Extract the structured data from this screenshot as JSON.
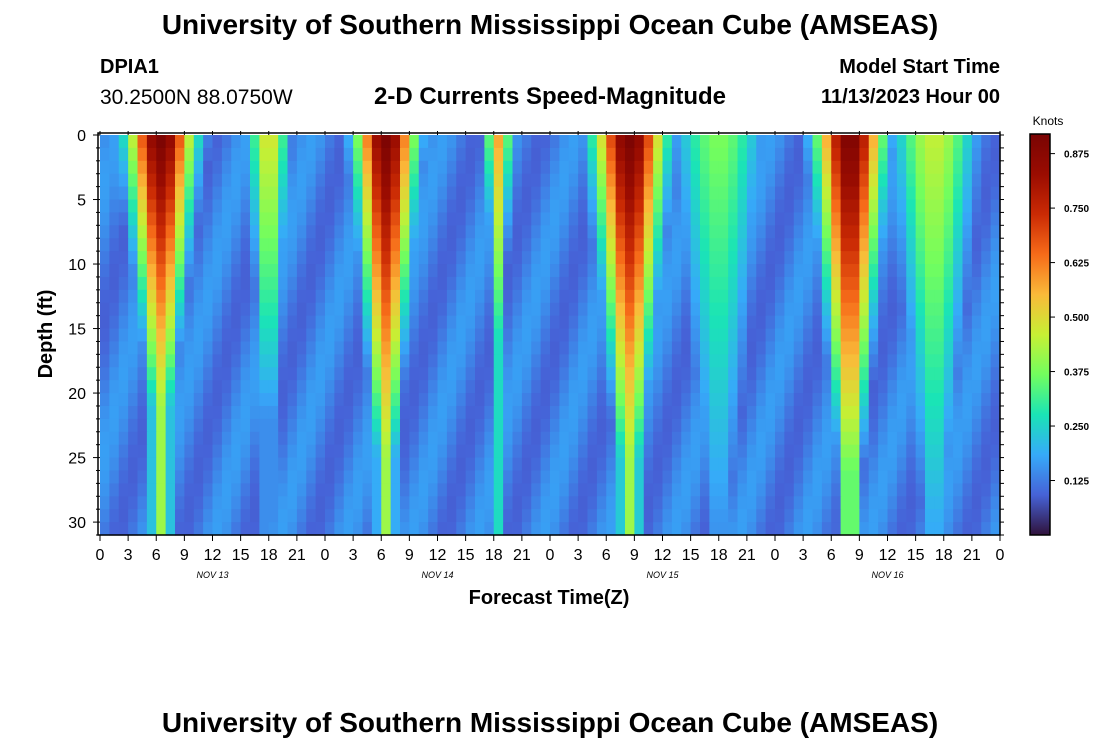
{
  "header": {
    "title": "University of Southern Mississippi Ocean Cube (AMSEAS)",
    "station_id": "DPIA1",
    "coordinates": "30.2500N  88.0750W",
    "plot_title": "2-D Currents Speed-Magnitude",
    "model_start_label": "Model Start Time",
    "model_start_value": "11/13/2023 Hour 00"
  },
  "footer": {
    "title": "University of Southern Mississippi Ocean Cube (AMSEAS)"
  },
  "chart_data": {
    "type": "heatmap",
    "title": "2-D Currents Speed-Magnitude",
    "xlabel": "Forecast Time(Z)",
    "ylabel": "Depth (ft)",
    "x_start_hour": 0,
    "x_end_hour": 96,
    "x_tick_step_hours": 3,
    "x_tick_labels": [
      "0",
      "3",
      "6",
      "9",
      "12",
      "15",
      "18",
      "21",
      "0",
      "3",
      "6",
      "9",
      "12",
      "15",
      "18",
      "21",
      "0",
      "3",
      "6",
      "9",
      "12",
      "15",
      "18",
      "21",
      "0",
      "3",
      "6",
      "9",
      "12",
      "15",
      "18",
      "21",
      "0"
    ],
    "day_labels": [
      {
        "label": "NOV 13",
        "hour": 12
      },
      {
        "label": "NOV 14",
        "hour": 36
      },
      {
        "label": "NOV 15",
        "hour": 60
      },
      {
        "label": "NOV 16",
        "hour": 84
      }
    ],
    "ylim": [
      0,
      31
    ],
    "y_ticks": [
      0,
      5,
      10,
      15,
      20,
      25,
      30
    ],
    "colorbar": {
      "label": "Knots",
      "range": [
        0,
        0.92
      ],
      "ticks": [
        0.125,
        0.25,
        0.375,
        0.5,
        0.625,
        0.75,
        0.875
      ],
      "tick_labels": [
        "0.125",
        "0.250",
        "0.375",
        "0.500",
        "0.625",
        "0.750",
        "0.875"
      ]
    },
    "speed_features_knots": [
      {
        "name": "ebb-nov13",
        "center_hour": 6.5,
        "surface": 0.92,
        "half_width_hours": 3.6,
        "bottom_depth_ft": 21
      },
      {
        "name": "ebb-nov14",
        "center_hour": 30.5,
        "surface": 0.92,
        "half_width_hours": 3.2,
        "bottom_depth_ft": 25
      },
      {
        "name": "ebb-nov15",
        "center_hour": 56.5,
        "surface": 0.92,
        "half_width_hours": 3.8,
        "bottom_depth_ft": 25
      },
      {
        "name": "ebb-nov16",
        "center_hour": 80.0,
        "surface": 0.92,
        "half_width_hours": 3.6,
        "bottom_depth_ft": 26
      },
      {
        "name": "flood-nov13",
        "center_hour": 18.0,
        "surface": 0.5,
        "half_width_hours": 2.2,
        "bottom_depth_ft": 22
      },
      {
        "name": "flood-nov14",
        "center_hour": 42.5,
        "surface": 0.58,
        "half_width_hours": 1.4,
        "bottom_depth_ft": 16
      },
      {
        "name": "flood-nov15",
        "center_hour": 66.0,
        "surface": 0.38,
        "half_width_hours": 5.0,
        "bottom_depth_ft": 30
      },
      {
        "name": "flood-nov16",
        "center_hour": 89.0,
        "surface": 0.46,
        "half_width_hours": 4.5,
        "bottom_depth_ft": 30
      }
    ],
    "background_speed_knots": 0.13
  }
}
